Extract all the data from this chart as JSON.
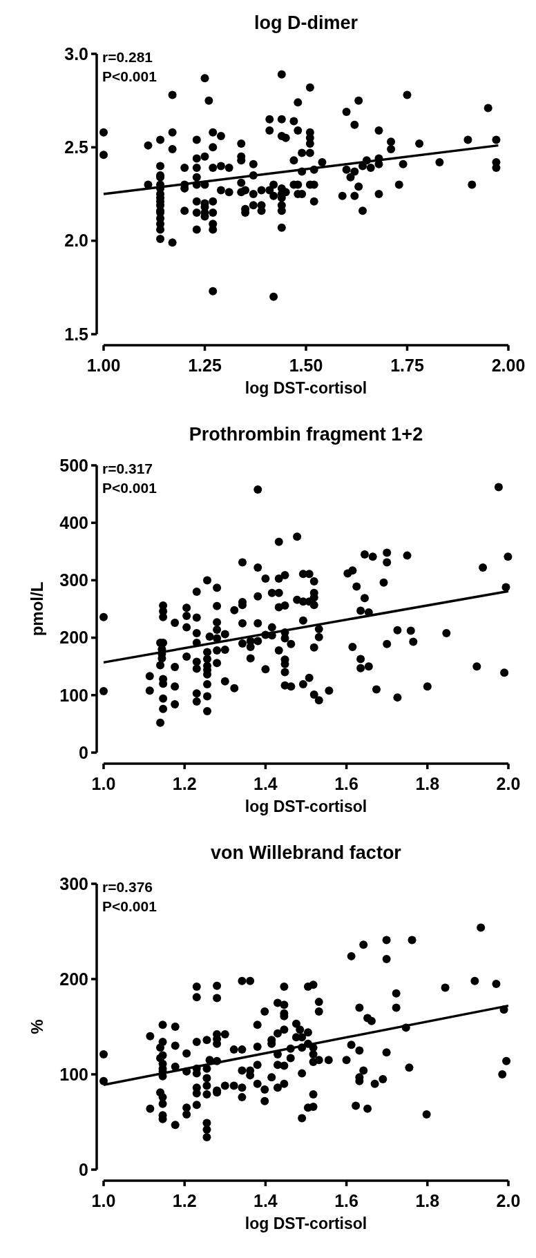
{
  "chart_data": [
    {
      "type": "scatter",
      "title": "log D-dimer",
      "xlabel": "log DST-cortisol",
      "annotations": [
        "r=0.281",
        "P<0.001"
      ],
      "xlim": [
        1,
        2
      ],
      "xticks": [
        {
          "value": 1,
          "label": "1.00"
        },
        {
          "value": 1.25,
          "label": "1.25"
        },
        {
          "value": 1.5,
          "label": "1.50"
        },
        {
          "value": 1.75,
          "label": "1.75"
        },
        {
          "value": 2,
          "label": "2.00"
        }
      ],
      "ylim": [
        1.5,
        3
      ],
      "yticks": [
        {
          "value": 1.5,
          "label": "1.5"
        },
        {
          "value": 2,
          "label": "2.0"
        },
        {
          "value": 2.5,
          "label": "2.5"
        },
        {
          "value": 3,
          "label": "3.0"
        }
      ],
      "series": [
        {
          "marker": "circle",
          "color": "#000000",
          "x": [
            1.0,
            1.0,
            1.11,
            1.11,
            1.14,
            1.14,
            1.14,
            1.14,
            1.14,
            1.14,
            1.14,
            1.14,
            1.14,
            1.14,
            1.14,
            1.14,
            1.14,
            1.14,
            1.14,
            1.14,
            1.17,
            1.17,
            1.17,
            1.17,
            1.2,
            1.2,
            1.2,
            1.2,
            1.23,
            1.23,
            1.23,
            1.23,
            1.23,
            1.23,
            1.23,
            1.23,
            1.25,
            1.26,
            1.25,
            1.25,
            1.25,
            1.25,
            1.25,
            1.25,
            1.27,
            1.27,
            1.27,
            1.27,
            1.27,
            1.27,
            1.27,
            1.27,
            1.29,
            1.29,
            1.29,
            1.31,
            1.31,
            1.34,
            1.34,
            1.34,
            1.34,
            1.34,
            1.35,
            1.35,
            1.35,
            1.37,
            1.37,
            1.37,
            1.37,
            1.39,
            1.39,
            1.39,
            1.41,
            1.41,
            1.41,
            1.42,
            1.42,
            1.42,
            1.44,
            1.44,
            1.44,
            1.44,
            1.44,
            1.44,
            1.44,
            1.44,
            1.44,
            1.45,
            1.45,
            1.47,
            1.47,
            1.48,
            1.48,
            1.48,
            1.48,
            1.47,
            1.49,
            1.49,
            1.49,
            1.51,
            1.51,
            1.51,
            1.51,
            1.51,
            1.51,
            1.52,
            1.52,
            1.52,
            1.54,
            1.59,
            1.6,
            1.6,
            1.61,
            1.62,
            1.62,
            1.62,
            1.63,
            1.63,
            1.64,
            1.64,
            1.65,
            1.66,
            1.68,
            1.68,
            1.68,
            1.68,
            1.71,
            1.71,
            1.73,
            1.74,
            1.75,
            1.78,
            1.83,
            1.9,
            1.91,
            1.95,
            1.97,
            1.97,
            1.97
          ],
          "values": [
            2.58,
            2.46,
            2.51,
            2.3,
            2.54,
            2.4,
            2.35,
            2.34,
            2.3,
            2.28,
            2.25,
            2.23,
            2.21,
            2.19,
            2.16,
            2.15,
            2.12,
            2.09,
            2.06,
            2.01,
            2.78,
            2.58,
            2.49,
            1.99,
            2.39,
            2.3,
            2.28,
            2.16,
            2.54,
            2.44,
            2.39,
            2.34,
            2.3,
            2.21,
            2.15,
            2.06,
            2.87,
            2.75,
            2.45,
            2.3,
            2.2,
            2.18,
            2.15,
            2.13,
            2.58,
            2.5,
            2.39,
            2.21,
            2.15,
            2.09,
            2.06,
            1.73,
            2.56,
            2.4,
            2.27,
            2.39,
            2.26,
            2.52,
            2.45,
            2.43,
            2.31,
            2.26,
            2.27,
            2.17,
            2.15,
            2.41,
            2.35,
            2.25,
            2.19,
            2.27,
            2.19,
            2.16,
            2.65,
            2.59,
            2.27,
            2.3,
            2.24,
            1.7,
            2.89,
            2.65,
            2.56,
            2.28,
            2.25,
            2.23,
            2.19,
            2.16,
            2.07,
            2.55,
            2.26,
            2.64,
            2.3,
            2.74,
            2.59,
            2.3,
            2.25,
            2.43,
            2.47,
            2.37,
            2.25,
            2.82,
            2.58,
            2.55,
            2.52,
            2.47,
            2.3,
            2.38,
            2.3,
            2.21,
            2.42,
            2.24,
            2.69,
            2.38,
            2.34,
            2.62,
            2.37,
            2.24,
            2.75,
            2.29,
            2.4,
            2.16,
            2.43,
            2.39,
            2.41,
            2.59,
            2.44,
            2.25,
            2.53,
            2.49,
            2.3,
            2.41,
            2.78,
            2.52,
            2.42,
            2.54,
            2.3,
            2.71,
            2.54,
            2.42,
            2.39
          ]
        },
        {
          "type": "line",
          "color": "#000000",
          "line_style": "solid",
          "x": [
            1.0,
            1.975
          ],
          "values": [
            2.25,
            2.51
          ]
        }
      ]
    },
    {
      "type": "scatter",
      "title": "Prothrombin fragment 1+2",
      "xlabel": "log DST-cortisol",
      "ylabel": "pmol/L",
      "annotations": [
        "r=0.317",
        "P<0.001"
      ],
      "xlim": [
        1,
        2
      ],
      "xticks": [
        {
          "value": 1,
          "label": "1.0"
        },
        {
          "value": 1.2,
          "label": "1.2"
        },
        {
          "value": 1.4,
          "label": "1.4"
        },
        {
          "value": 1.6,
          "label": "1.6"
        },
        {
          "value": 1.8,
          "label": "1.8"
        },
        {
          "value": 2,
          "label": "2.0"
        }
      ],
      "ylim": [
        0,
        500
      ],
      "yticks": [
        0,
        100,
        200,
        300,
        400,
        500
      ],
      "series": [
        {
          "marker": "circle",
          "color": "#000000",
          "x": [
            1.0,
            1.0,
            1.114,
            1.114,
            1.147,
            1.147,
            1.147,
            1.14,
            1.147,
            1.144,
            1.144,
            1.144,
            1.14,
            1.147,
            1.147,
            1.147,
            1.147,
            1.14,
            1.176,
            1.176,
            1.176,
            1.176,
            1.205,
            1.205,
            1.205,
            1.205,
            1.23,
            1.23,
            1.23,
            1.23,
            1.23,
            1.23,
            1.23,
            1.23,
            1.256,
            1.256,
            1.256,
            1.256,
            1.256,
            1.256,
            1.256,
            1.256,
            1.256,
            1.262,
            1.28,
            1.28,
            1.28,
            1.28,
            1.28,
            1.28,
            1.28,
            1.3,
            1.3,
            1.3,
            1.323,
            1.323,
            1.343,
            1.343,
            1.343,
            1.343,
            1.343,
            1.363,
            1.363,
            1.363,
            1.381,
            1.381,
            1.381,
            1.381,
            1.381,
            1.4,
            1.4,
            1.4,
            1.416,
            1.416,
            1.416,
            1.433,
            1.433,
            1.433,
            1.433,
            1.433,
            1.448,
            1.448,
            1.448,
            1.448,
            1.448,
            1.448,
            1.448,
            1.448,
            1.463,
            1.463,
            1.478,
            1.478,
            1.493,
            1.508,
            1.493,
            1.508,
            1.493,
            1.493,
            1.508,
            1.52,
            1.52,
            1.52,
            1.52,
            1.52,
            1.52,
            1.532,
            1.532,
            1.532,
            1.557,
            1.603,
            1.615,
            1.625,
            1.615,
            1.635,
            1.635,
            1.645,
            1.645,
            1.635,
            1.655,
            1.655,
            1.665,
            1.674,
            1.692,
            1.7,
            1.7,
            1.7,
            1.726,
            1.726,
            1.75,
            1.759,
            1.765,
            1.8,
            1.847,
            1.922,
            1.937,
            1.976,
            1.99,
            1.994,
            1.999
          ],
          "values": [
            236,
            107,
            133,
            108,
            256,
            246,
            236,
            191,
            191,
            180,
            172,
            164,
            152,
            128,
            120,
            94,
            76,
            52,
            226,
            149,
            115,
            84,
            252,
            238,
            218,
            167,
            280,
            235,
            208,
            191,
            158,
            146,
            103,
            89,
            300,
            175,
            163,
            151,
            144,
            136,
            119,
            98,
            72,
            202,
            287,
            255,
            227,
            214,
            199,
            178,
            156,
            206,
            179,
            124,
            248,
            112,
            331,
            262,
            257,
            225,
            190,
            194,
            184,
            164,
            458,
            322,
            272,
            225,
            194,
            303,
            205,
            145,
            278,
            218,
            204,
            367,
            303,
            278,
            253,
            178,
            309,
            256,
            209,
            199,
            162,
            154,
            140,
            117,
            189,
            115,
            376,
            266,
            311,
            311,
            263,
            263,
            230,
            119,
            130,
            298,
            278,
            270,
            257,
            183,
            101,
            215,
            201,
            91,
            108,
            312,
            317,
            289,
            184,
            163,
            147,
            345,
            269,
            247,
            244,
            150,
            341,
            110,
            296,
            348,
            331,
            189,
            213,
            96,
            343,
            212,
            193,
            115,
            208,
            150,
            322,
            462,
            139,
            288,
            341
          ]
        },
        {
          "type": "line",
          "color": "#000000",
          "line_style": "solid",
          "x": [
            1.0,
            2.0
          ],
          "values": [
            157,
            281
          ]
        }
      ]
    },
    {
      "type": "scatter",
      "title": "von Willebrand factor",
      "xlabel": "log DST-cortisol",
      "ylabel": "%",
      "annotations": [
        "r=0.376",
        "P<0.001"
      ],
      "xlim": [
        1,
        2
      ],
      "xticks": [
        {
          "value": 1,
          "label": "1.0"
        },
        {
          "value": 1.2,
          "label": "1.2"
        },
        {
          "value": 1.4,
          "label": "1.4"
        },
        {
          "value": 1.6,
          "label": "1.6"
        },
        {
          "value": 1.8,
          "label": "1.8"
        },
        {
          "value": 2,
          "label": "2.0"
        }
      ],
      "ylim": [
        0,
        300
      ],
      "yticks": [
        0,
        100,
        200,
        300
      ],
      "series": [
        {
          "marker": "circle",
          "color": "#000000",
          "x": [
            1.0,
            1.0,
            1.115,
            1.115,
            1.146,
            1.146,
            1.14,
            1.146,
            1.14,
            1.146,
            1.146,
            1.146,
            1.146,
            1.14,
            1.146,
            1.146,
            1.146,
            1.146,
            1.177,
            1.177,
            1.177,
            1.177,
            1.205,
            1.205,
            1.205,
            1.205,
            1.23,
            1.23,
            1.23,
            1.23,
            1.23,
            1.23,
            1.23,
            1.23,
            1.255,
            1.255,
            1.255,
            1.255,
            1.255,
            1.255,
            1.255,
            1.255,
            1.262,
            1.28,
            1.28,
            1.28,
            1.28,
            1.28,
            1.28,
            1.28,
            1.28,
            1.3,
            1.3,
            1.322,
            1.322,
            1.342,
            1.342,
            1.342,
            1.342,
            1.342,
            1.362,
            1.362,
            1.362,
            1.38,
            1.38,
            1.38,
            1.38,
            1.398,
            1.398,
            1.398,
            1.415,
            1.415,
            1.415,
            1.43,
            1.43,
            1.43,
            1.43,
            1.43,
            1.446,
            1.446,
            1.446,
            1.446,
            1.446,
            1.446,
            1.446,
            1.462,
            1.462,
            1.476,
            1.485,
            1.476,
            1.49,
            1.49,
            1.49,
            1.49,
            1.505,
            1.518,
            1.505,
            1.505,
            1.518,
            1.518,
            1.518,
            1.518,
            1.518,
            1.505,
            1.532,
            1.532,
            1.532,
            1.556,
            1.6,
            1.612,
            1.612,
            1.623,
            1.632,
            1.632,
            1.632,
            1.632,
            1.642,
            1.642,
            1.652,
            1.662,
            1.652,
            1.67,
            1.69,
            1.699,
            1.699,
            1.699,
            1.723,
            1.723,
            1.747,
            1.755,
            1.762,
            1.798,
            1.844,
            1.917,
            1.932,
            1.97,
            1.989,
            1.985,
            1.995
          ],
          "values": [
            121,
            93,
            140,
            64,
            152,
            134,
            128,
            120,
            117,
            111,
            106,
            103,
            98,
            81,
            76,
            69,
            57,
            53,
            150,
            130,
            108,
            47,
            122,
            103,
            65,
            58,
            192,
            181,
            134,
            106,
            101,
            86,
            80,
            68,
            136,
            106,
            96,
            88,
            79,
            49,
            42,
            34,
            115,
            193,
            180,
            142,
            137,
            132,
            114,
            83,
            81,
            142,
            88,
            126,
            88,
            198,
            126,
            104,
            86,
            76,
            198,
            104,
            99,
            152,
            129,
            110,
            90,
            166,
            84,
            72,
            136,
            132,
            97,
            175,
            143,
            121,
            110,
            86,
            192,
            173,
            164,
            161,
            147,
            109,
            90,
            127,
            117,
            153,
            147,
            139,
            139,
            128,
            101,
            54,
            192,
            194,
            144,
            132,
            128,
            121,
            113,
            79,
            66,
            65,
            176,
            166,
            115,
            115,
            115,
            224,
            131,
            67,
            170,
            125,
            97,
            93,
            236,
            104,
            159,
            156,
            64,
            90,
            95,
            241,
            221,
            123,
            185,
            170,
            149,
            107,
            241,
            58,
            191,
            198,
            254,
            195,
            168,
            100,
            114
          ]
        },
        {
          "type": "line",
          "color": "#000000",
          "line_style": "solid",
          "x": [
            1.0,
            2.0
          ],
          "values": [
            89,
            172
          ]
        }
      ]
    }
  ]
}
